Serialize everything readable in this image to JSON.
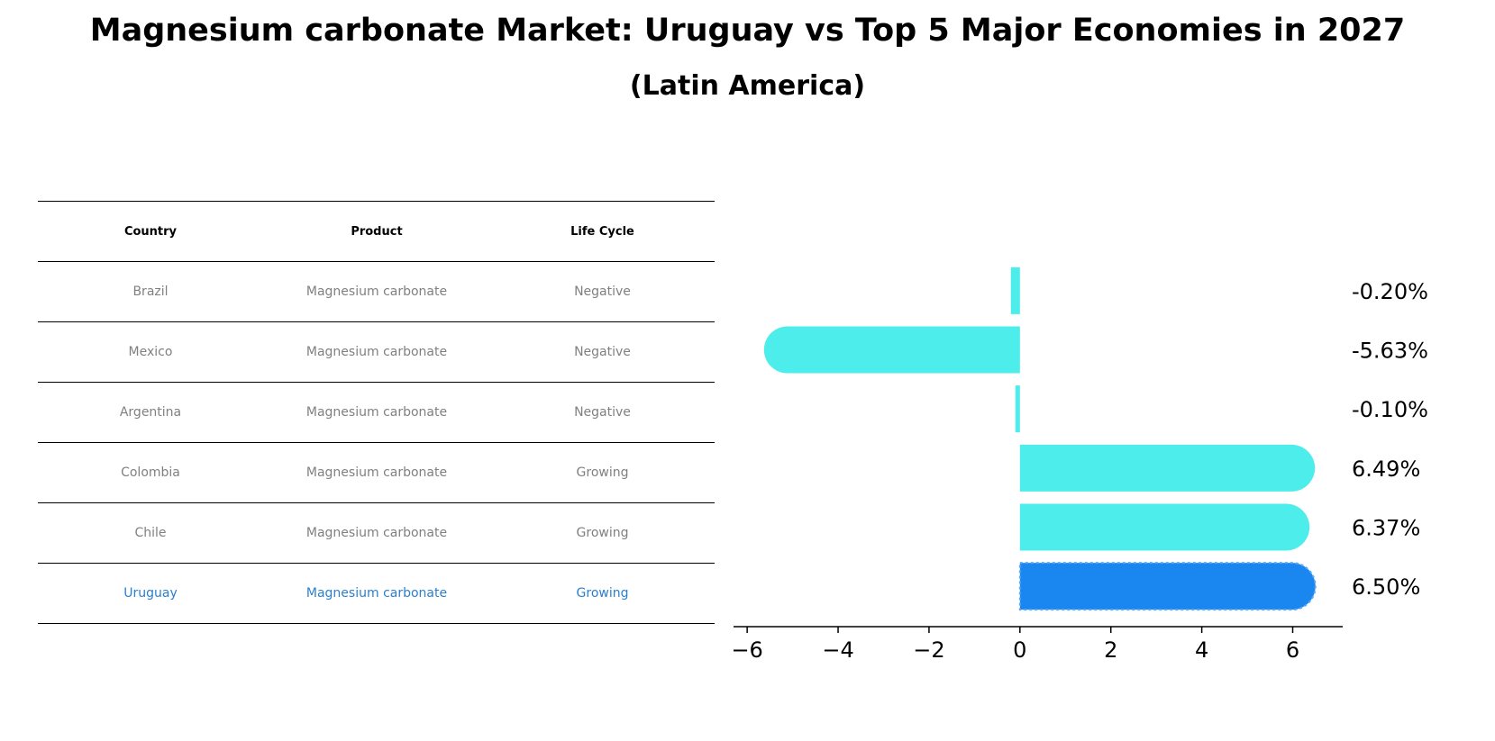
{
  "title": "Magnesium carbonate Market: Uruguay vs Top 5 Major Economies in 2027",
  "subtitle": "(Latin America)",
  "table": {
    "headers": [
      "Country",
      "Product",
      "Life Cycle"
    ],
    "rows": [
      [
        "Brazil",
        "Magnesium carbonate",
        "Negative"
      ],
      [
        "Mexico",
        "Magnesium carbonate",
        "Negative"
      ],
      [
        "Argentina",
        "Magnesium carbonate",
        "Negative"
      ],
      [
        "Colombia",
        "Magnesium carbonate",
        "Growing"
      ],
      [
        "Chile",
        "Magnesium carbonate",
        "Growing"
      ],
      [
        "Uruguay",
        "Magnesium carbonate",
        "Growing"
      ]
    ]
  },
  "chart_data": {
    "type": "bar",
    "orientation": "horizontal",
    "categories": [
      "Brazil",
      "Mexico",
      "Argentina",
      "Colombia",
      "Chile",
      "Uruguay"
    ],
    "values": [
      -0.2,
      -5.63,
      -0.1,
      6.49,
      6.37,
      6.5
    ],
    "labels": [
      "-0.20%",
      "-5.63%",
      "-0.10%",
      "6.49%",
      "6.37%",
      "6.50%"
    ],
    "highlight": "Uruguay",
    "xlim": [
      -6.3,
      7.1
    ],
    "xticks": [
      -6,
      -4,
      -2,
      0,
      2,
      4,
      6
    ],
    "xtick_labels": [
      "−6",
      "−4",
      "−2",
      "0",
      "2",
      "4",
      "6"
    ],
    "colors": {
      "default": "#4dedeb",
      "highlight": "#1a87f0"
    }
  }
}
